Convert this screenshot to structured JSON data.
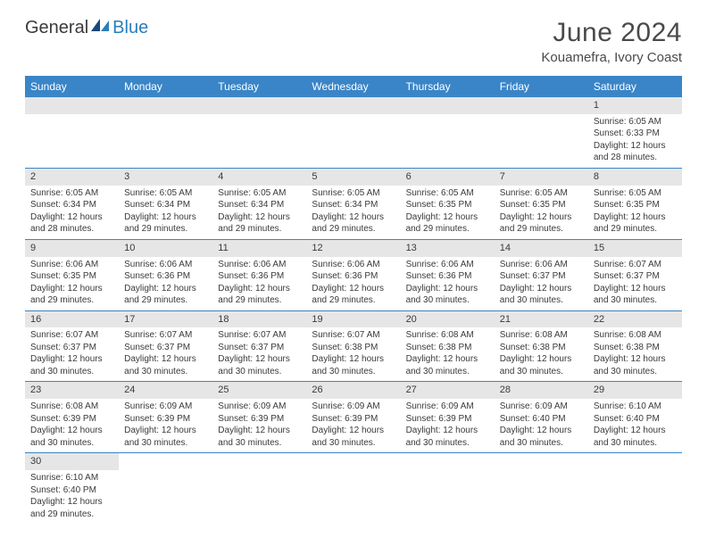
{
  "brand": {
    "part1": "General",
    "part2": "Blue"
  },
  "title": "June 2024",
  "subtitle": "Kouamefra, Ivory Coast",
  "colors": {
    "header_bg": "#3a85c7",
    "header_text": "#ffffff",
    "daynum_bg": "#e6e6e6",
    "text": "#3a3a3a",
    "divider": "#3a85c7",
    "logo_blue": "#2a7fba"
  },
  "day_names": [
    "Sunday",
    "Monday",
    "Tuesday",
    "Wednesday",
    "Thursday",
    "Friday",
    "Saturday"
  ],
  "weeks": [
    [
      null,
      null,
      null,
      null,
      null,
      null,
      {
        "n": "1",
        "sr": "Sunrise: 6:05 AM",
        "ss": "Sunset: 6:33 PM",
        "dl1": "Daylight: 12 hours",
        "dl2": "and 28 minutes."
      }
    ],
    [
      {
        "n": "2",
        "sr": "Sunrise: 6:05 AM",
        "ss": "Sunset: 6:34 PM",
        "dl1": "Daylight: 12 hours",
        "dl2": "and 28 minutes."
      },
      {
        "n": "3",
        "sr": "Sunrise: 6:05 AM",
        "ss": "Sunset: 6:34 PM",
        "dl1": "Daylight: 12 hours",
        "dl2": "and 29 minutes."
      },
      {
        "n": "4",
        "sr": "Sunrise: 6:05 AM",
        "ss": "Sunset: 6:34 PM",
        "dl1": "Daylight: 12 hours",
        "dl2": "and 29 minutes."
      },
      {
        "n": "5",
        "sr": "Sunrise: 6:05 AM",
        "ss": "Sunset: 6:34 PM",
        "dl1": "Daylight: 12 hours",
        "dl2": "and 29 minutes."
      },
      {
        "n": "6",
        "sr": "Sunrise: 6:05 AM",
        "ss": "Sunset: 6:35 PM",
        "dl1": "Daylight: 12 hours",
        "dl2": "and 29 minutes."
      },
      {
        "n": "7",
        "sr": "Sunrise: 6:05 AM",
        "ss": "Sunset: 6:35 PM",
        "dl1": "Daylight: 12 hours",
        "dl2": "and 29 minutes."
      },
      {
        "n": "8",
        "sr": "Sunrise: 6:05 AM",
        "ss": "Sunset: 6:35 PM",
        "dl1": "Daylight: 12 hours",
        "dl2": "and 29 minutes."
      }
    ],
    [
      {
        "n": "9",
        "sr": "Sunrise: 6:06 AM",
        "ss": "Sunset: 6:35 PM",
        "dl1": "Daylight: 12 hours",
        "dl2": "and 29 minutes."
      },
      {
        "n": "10",
        "sr": "Sunrise: 6:06 AM",
        "ss": "Sunset: 6:36 PM",
        "dl1": "Daylight: 12 hours",
        "dl2": "and 29 minutes."
      },
      {
        "n": "11",
        "sr": "Sunrise: 6:06 AM",
        "ss": "Sunset: 6:36 PM",
        "dl1": "Daylight: 12 hours",
        "dl2": "and 29 minutes."
      },
      {
        "n": "12",
        "sr": "Sunrise: 6:06 AM",
        "ss": "Sunset: 6:36 PM",
        "dl1": "Daylight: 12 hours",
        "dl2": "and 29 minutes."
      },
      {
        "n": "13",
        "sr": "Sunrise: 6:06 AM",
        "ss": "Sunset: 6:36 PM",
        "dl1": "Daylight: 12 hours",
        "dl2": "and 30 minutes."
      },
      {
        "n": "14",
        "sr": "Sunrise: 6:06 AM",
        "ss": "Sunset: 6:37 PM",
        "dl1": "Daylight: 12 hours",
        "dl2": "and 30 minutes."
      },
      {
        "n": "15",
        "sr": "Sunrise: 6:07 AM",
        "ss": "Sunset: 6:37 PM",
        "dl1": "Daylight: 12 hours",
        "dl2": "and 30 minutes."
      }
    ],
    [
      {
        "n": "16",
        "sr": "Sunrise: 6:07 AM",
        "ss": "Sunset: 6:37 PM",
        "dl1": "Daylight: 12 hours",
        "dl2": "and 30 minutes."
      },
      {
        "n": "17",
        "sr": "Sunrise: 6:07 AM",
        "ss": "Sunset: 6:37 PM",
        "dl1": "Daylight: 12 hours",
        "dl2": "and 30 minutes."
      },
      {
        "n": "18",
        "sr": "Sunrise: 6:07 AM",
        "ss": "Sunset: 6:37 PM",
        "dl1": "Daylight: 12 hours",
        "dl2": "and 30 minutes."
      },
      {
        "n": "19",
        "sr": "Sunrise: 6:07 AM",
        "ss": "Sunset: 6:38 PM",
        "dl1": "Daylight: 12 hours",
        "dl2": "and 30 minutes."
      },
      {
        "n": "20",
        "sr": "Sunrise: 6:08 AM",
        "ss": "Sunset: 6:38 PM",
        "dl1": "Daylight: 12 hours",
        "dl2": "and 30 minutes."
      },
      {
        "n": "21",
        "sr": "Sunrise: 6:08 AM",
        "ss": "Sunset: 6:38 PM",
        "dl1": "Daylight: 12 hours",
        "dl2": "and 30 minutes."
      },
      {
        "n": "22",
        "sr": "Sunrise: 6:08 AM",
        "ss": "Sunset: 6:38 PM",
        "dl1": "Daylight: 12 hours",
        "dl2": "and 30 minutes."
      }
    ],
    [
      {
        "n": "23",
        "sr": "Sunrise: 6:08 AM",
        "ss": "Sunset: 6:39 PM",
        "dl1": "Daylight: 12 hours",
        "dl2": "and 30 minutes."
      },
      {
        "n": "24",
        "sr": "Sunrise: 6:09 AM",
        "ss": "Sunset: 6:39 PM",
        "dl1": "Daylight: 12 hours",
        "dl2": "and 30 minutes."
      },
      {
        "n": "25",
        "sr": "Sunrise: 6:09 AM",
        "ss": "Sunset: 6:39 PM",
        "dl1": "Daylight: 12 hours",
        "dl2": "and 30 minutes."
      },
      {
        "n": "26",
        "sr": "Sunrise: 6:09 AM",
        "ss": "Sunset: 6:39 PM",
        "dl1": "Daylight: 12 hours",
        "dl2": "and 30 minutes."
      },
      {
        "n": "27",
        "sr": "Sunrise: 6:09 AM",
        "ss": "Sunset: 6:39 PM",
        "dl1": "Daylight: 12 hours",
        "dl2": "and 30 minutes."
      },
      {
        "n": "28",
        "sr": "Sunrise: 6:09 AM",
        "ss": "Sunset: 6:40 PM",
        "dl1": "Daylight: 12 hours",
        "dl2": "and 30 minutes."
      },
      {
        "n": "29",
        "sr": "Sunrise: 6:10 AM",
        "ss": "Sunset: 6:40 PM",
        "dl1": "Daylight: 12 hours",
        "dl2": "and 30 minutes."
      }
    ],
    [
      {
        "n": "30",
        "sr": "Sunrise: 6:10 AM",
        "ss": "Sunset: 6:40 PM",
        "dl1": "Daylight: 12 hours",
        "dl2": "and 29 minutes."
      },
      null,
      null,
      null,
      null,
      null,
      null
    ]
  ]
}
